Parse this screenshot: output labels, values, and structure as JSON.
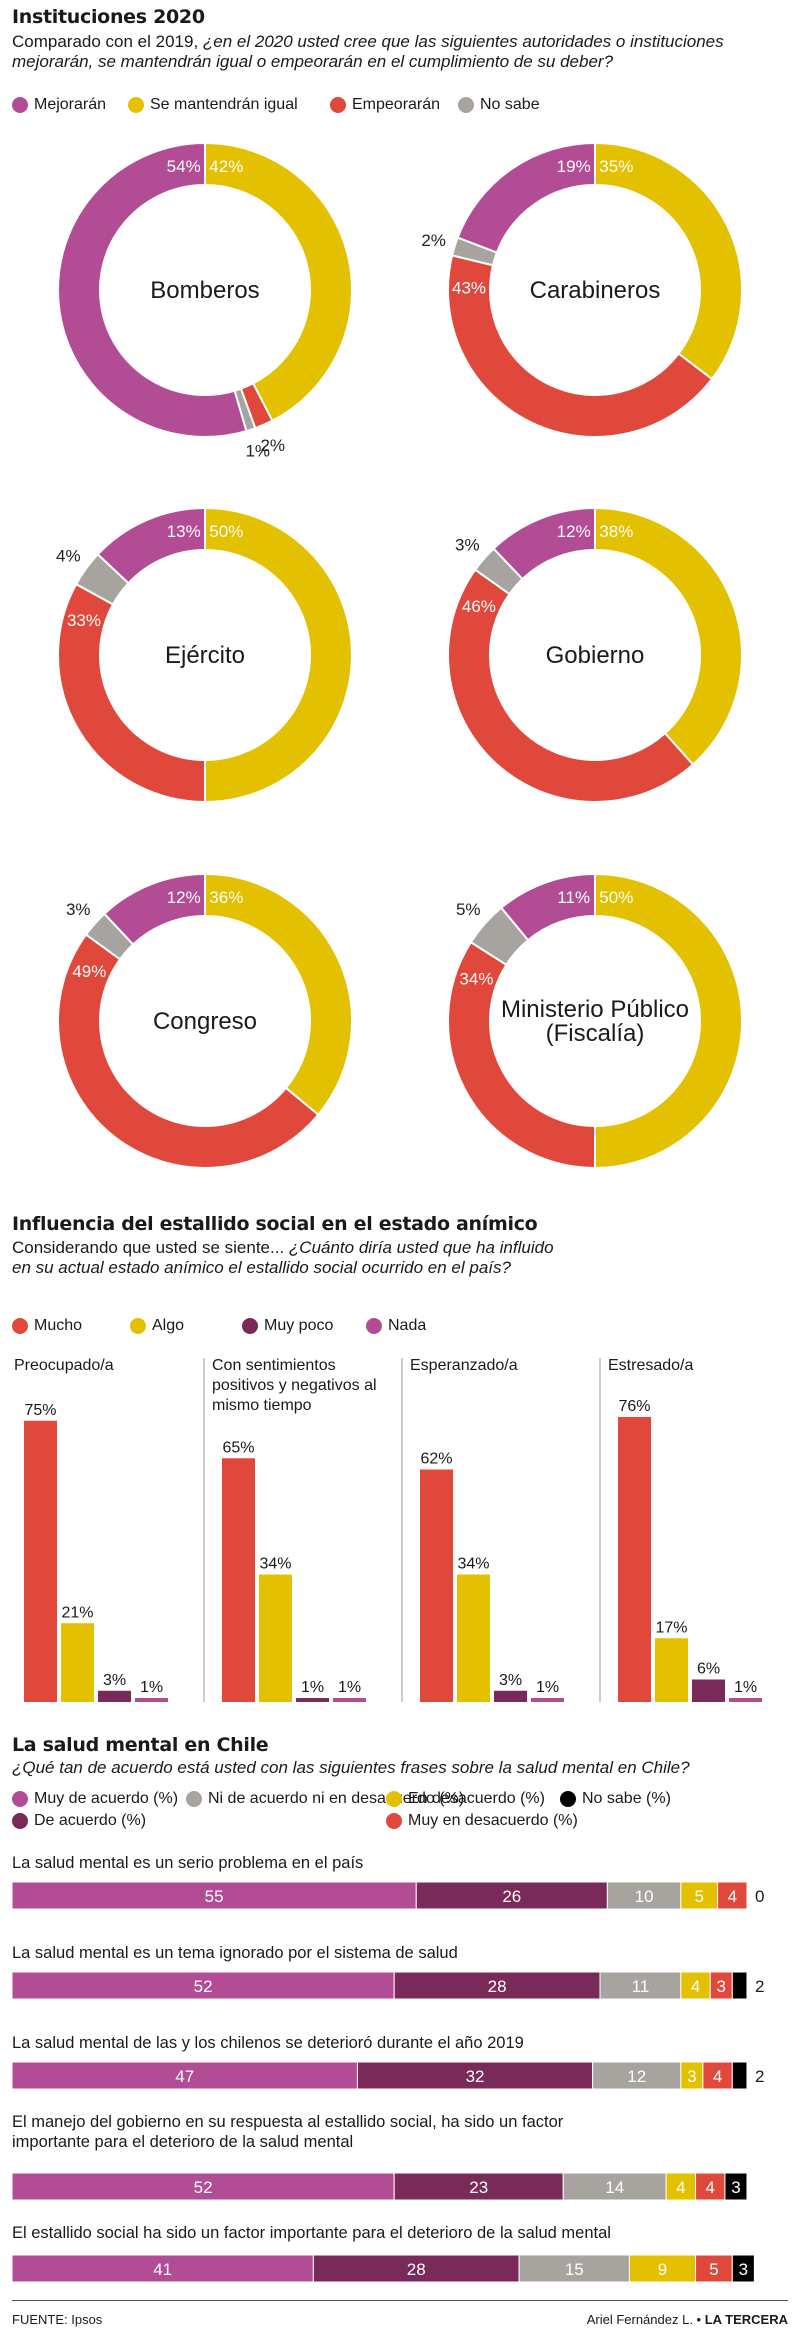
{
  "section1": {
    "title": "Instituciones 2020",
    "subtitle_plain": "Comparado con el 2019,  ",
    "subtitle_question": "¿en el 2020 usted cree que las siguientes autoridades o instituciones mejorarán, se mantendrán igual o empeorarán en el cumplimiento de su deber?",
    "legend": [
      {
        "label": "Mejorarán",
        "color": "#b24d95"
      },
      {
        "label": "Se mantendrán igual",
        "color": "#e3c000"
      },
      {
        "label": "Empeorarán",
        "color": "#e0483c"
      },
      {
        "label": "No sabe",
        "color": "#a7a39f"
      }
    ]
  },
  "section2": {
    "title": "Influencia del estallido social en el estado anímico",
    "subtitle_plain": "Considerando que usted se siente... ",
    "subtitle_question": "¿Cuánto diría usted que ha influido en su actual estado anímico el estallido social ocurrido en el país?",
    "legend": [
      {
        "label": "Mucho",
        "color": "#e0483c"
      },
      {
        "label": "Algo",
        "color": "#e3c000"
      },
      {
        "label": "Muy poco",
        "color": "#7a2a58"
      },
      {
        "label": "Nada",
        "color": "#b24d95"
      }
    ]
  },
  "section3": {
    "title": "La salud mental en Chile",
    "subtitle_question": "¿Qué tan de acuerdo está usted con las siguientes frases sobre la salud mental en Chile?",
    "legend": [
      {
        "label": "Muy de acuerdo (%)",
        "color": "#b24d95"
      },
      {
        "label": "Ni de acuerdo ni en desacuerdo (%)",
        "color": "#a7a39f"
      },
      {
        "label": "En desacuerdo (%)",
        "color": "#e3c000"
      },
      {
        "label": "No sabe (%)",
        "color": "#000000"
      },
      {
        "label": "De acuerdo (%)",
        "color": "#7a2a58"
      },
      {
        "label": "Muy en desacuerdo (%)",
        "color": "#e0483c"
      }
    ]
  },
  "footer": {
    "source": "FUENTE: Ipsos",
    "author": "Ariel Fernández L. • ",
    "outlet": "LA TERCERA"
  },
  "chart_data": [
    {
      "type": "pie",
      "variant": "donut",
      "series_names": [
        "Mejorarán",
        "Se mantendrán igual",
        "Empeorarán",
        "No sabe"
      ],
      "colors": [
        "#b24d95",
        "#e3c000",
        "#e0483c",
        "#a7a39f"
      ],
      "donuts": [
        {
          "name": "Bomberos",
          "values": [
            54,
            42,
            2,
            1
          ]
        },
        {
          "name": "Carabineros",
          "values": [
            19,
            35,
            43,
            2
          ]
        },
        {
          "name": "Ejército",
          "values": [
            13,
            50,
            33,
            4
          ]
        },
        {
          "name": "Gobierno",
          "values": [
            12,
            38,
            46,
            3
          ]
        },
        {
          "name": "Congreso",
          "values": [
            12,
            36,
            49,
            3
          ]
        },
        {
          "name": "Ministerio Público (Fiscalía)",
          "values": [
            11,
            50,
            34,
            5
          ]
        }
      ]
    },
    {
      "type": "bar",
      "categories": [
        "Preocupado/a",
        "Con sentimientos positivos y negativos al mismo tiempo",
        "Esperanzado/a",
        "Estresado/a"
      ],
      "series": [
        {
          "name": "Mucho",
          "color": "#e0483c",
          "values": [
            75,
            65,
            62,
            76
          ]
        },
        {
          "name": "Algo",
          "color": "#e3c000",
          "values": [
            21,
            34,
            34,
            17
          ]
        },
        {
          "name": "Muy poco",
          "color": "#7a2a58",
          "values": [
            3,
            1,
            3,
            6
          ]
        },
        {
          "name": "Nada",
          "color": "#b24d95",
          "values": [
            1,
            1,
            1,
            1
          ]
        }
      ]
    },
    {
      "type": "bar",
      "orientation": "horizontal",
      "stacked": true,
      "categories": [
        "La salud mental es un serio problema en el país",
        "La salud mental es un tema ignorado por el sistema de salud",
        "La salud mental de las y los chilenos se deterioró durante el año 2019",
        "El manejo del gobierno en su respuesta al estallido social, ha sido un factor importante para el deterioro de la salud mental",
        "El estallido social ha sido un factor importante para el deterioro de la salud mental"
      ],
      "series": [
        {
          "name": "Muy de acuerdo (%)",
          "color": "#b24d95",
          "values": [
            55,
            52,
            47,
            52,
            41
          ]
        },
        {
          "name": "De acuerdo (%)",
          "color": "#7a2a58",
          "values": [
            26,
            28,
            32,
            23,
            28
          ]
        },
        {
          "name": "Ni de acuerdo ni en desacuerdo (%)",
          "color": "#a7a39f",
          "values": [
            10,
            11,
            12,
            14,
            15
          ]
        },
        {
          "name": "En desacuerdo (%)",
          "color": "#e3c000",
          "values": [
            5,
            4,
            3,
            4,
            9
          ]
        },
        {
          "name": "Muy en desacuerdo (%)",
          "color": "#e0483c",
          "values": [
            4,
            3,
            4,
            4,
            5
          ]
        },
        {
          "name": "No sabe (%)",
          "color": "#000000",
          "values": [
            0,
            2,
            2,
            3,
            3
          ]
        }
      ]
    }
  ]
}
